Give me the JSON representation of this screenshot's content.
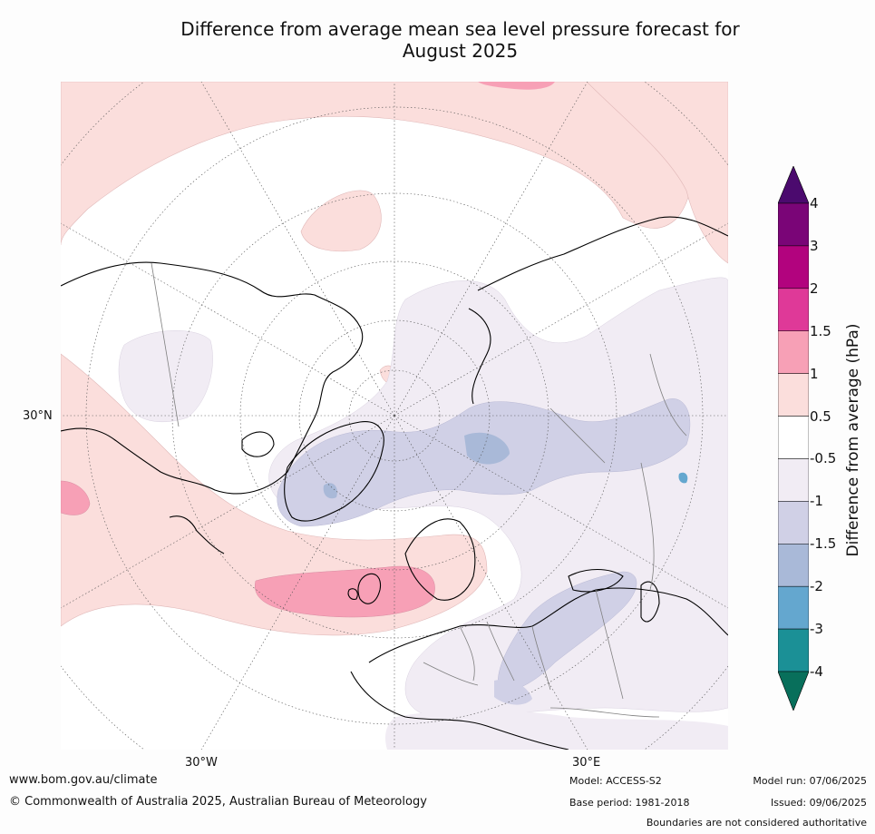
{
  "title_line1": "Difference from average mean sea level pressure forecast for",
  "title_line2": "August 2025",
  "map": {
    "projection": "north polar stereographic",
    "lat_label": "30°N",
    "lon_labels": [
      "30°W",
      "30°E"
    ],
    "colors": {
      "land_outline": "#000000",
      "borders": "#7f7f7f",
      "graticule": "#555555"
    }
  },
  "colorbar": {
    "title": "Difference from average (hPa)",
    "ticks": [
      "4",
      "3",
      "2",
      "1.5",
      "1",
      "0.5",
      "-0.5",
      "-1",
      "-1.5",
      "-2",
      "-3",
      "-4"
    ],
    "colors": [
      "#4b0a6e",
      "#7a0577",
      "#b2037e",
      "#df3998",
      "#f7a0b6",
      "#fbdedc",
      "#ffffff",
      "#f1ecf4",
      "#d0d0e6",
      "#a9b9d8",
      "#64a7cf",
      "#1b9096",
      "#086f5b"
    ]
  },
  "footer": {
    "url": "www.bom.gov.au/climate",
    "copyright": "© Commonwealth of Australia 2025, Australian Bureau of Meteorology",
    "model": "Model: ACCESS-S2",
    "base_period": "Base period: 1981-2018",
    "model_run": "Model run: 07/06/2025",
    "issued": "Issued: 09/06/2025",
    "disclaimer": "Boundaries are not considered authoritative"
  }
}
